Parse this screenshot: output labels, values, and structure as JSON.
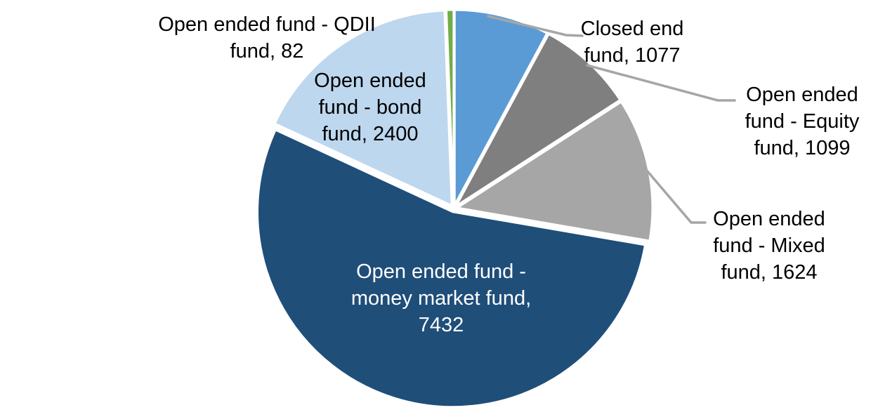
{
  "chart_data": {
    "type": "pie",
    "title": "",
    "categories": [
      "Closed end fund",
      "Open ended fund - Equity fund",
      "Open ended fund - Mixed fund",
      "Open ended fund - money market fund",
      "Open ended fund - bond fund",
      "Open ended fund - QDII fund"
    ],
    "values": [
      1077,
      1099,
      1624,
      7432,
      2400,
      82
    ],
    "total": 13714,
    "colors": [
      "#5B9BD5",
      "#7F7F7F",
      "#A6A6A6",
      "#1F4E79",
      "#BDD7EE",
      "#70AD47"
    ],
    "start_angle_deg": 0,
    "direction": "clockwise",
    "background": "#FFFFFF",
    "slice_border_color": "#FFFFFF",
    "leader_line_color": "#A6A6A6",
    "data_label_colors": [
      "#000000",
      "#000000",
      "#000000",
      "#FFFFFF",
      "#000000",
      "#000000"
    ],
    "legend_position": "none",
    "label_style": "category-and-value callouts"
  },
  "labels": {
    "closed_end": {
      "lines": [
        "Closed end",
        "fund, 1077"
      ]
    },
    "equity": {
      "lines": [
        "Open ended",
        "fund - Equity",
        "fund, 1099"
      ]
    },
    "mixed": {
      "lines": [
        "Open ended",
        "fund - Mixed",
        "fund, 1624"
      ]
    },
    "money_market": {
      "lines": [
        "Open ended fund -",
        "money market fund,",
        "7432"
      ]
    },
    "bond": {
      "lines": [
        "Open ended",
        "fund - bond",
        "fund, 2400"
      ]
    },
    "qdii": {
      "lines": [
        "Open ended fund - QDII",
        "fund, 82"
      ]
    }
  }
}
